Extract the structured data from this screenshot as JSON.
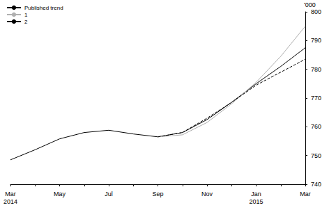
{
  "chart_data": {
    "type": "line",
    "y_label": "'000",
    "categories": [
      "Mar\n2014",
      null,
      "May",
      null,
      "Jul",
      null,
      "Sep",
      null,
      "Nov",
      null,
      "Jan\n2015",
      null,
      "Mar"
    ],
    "series": [
      {
        "name": "Published trend",
        "color": "#000000",
        "line_style": "solid",
        "values": [
          748.5,
          752,
          755.8,
          758,
          758.8,
          757.5,
          756.5,
          758,
          762.5,
          768.5,
          775,
          781,
          787.5
        ]
      },
      {
        "name": "1",
        "color": "#b0b0b0",
        "line_style": "solid",
        "values": [
          null,
          null,
          null,
          null,
          null,
          null,
          756.5,
          757.2,
          761.5,
          768,
          775.5,
          784.5,
          795
        ]
      },
      {
        "name": "2",
        "color": "#000000",
        "line_style": "dashed",
        "values": [
          null,
          null,
          null,
          null,
          null,
          null,
          756.5,
          758,
          763,
          768.5,
          774.5,
          779,
          783.5
        ]
      }
    ],
    "ylim": [
      740,
      800
    ],
    "yticks": [
      740,
      750,
      760,
      770,
      780,
      790,
      800
    ],
    "legend": "top-left",
    "grid": false
  }
}
